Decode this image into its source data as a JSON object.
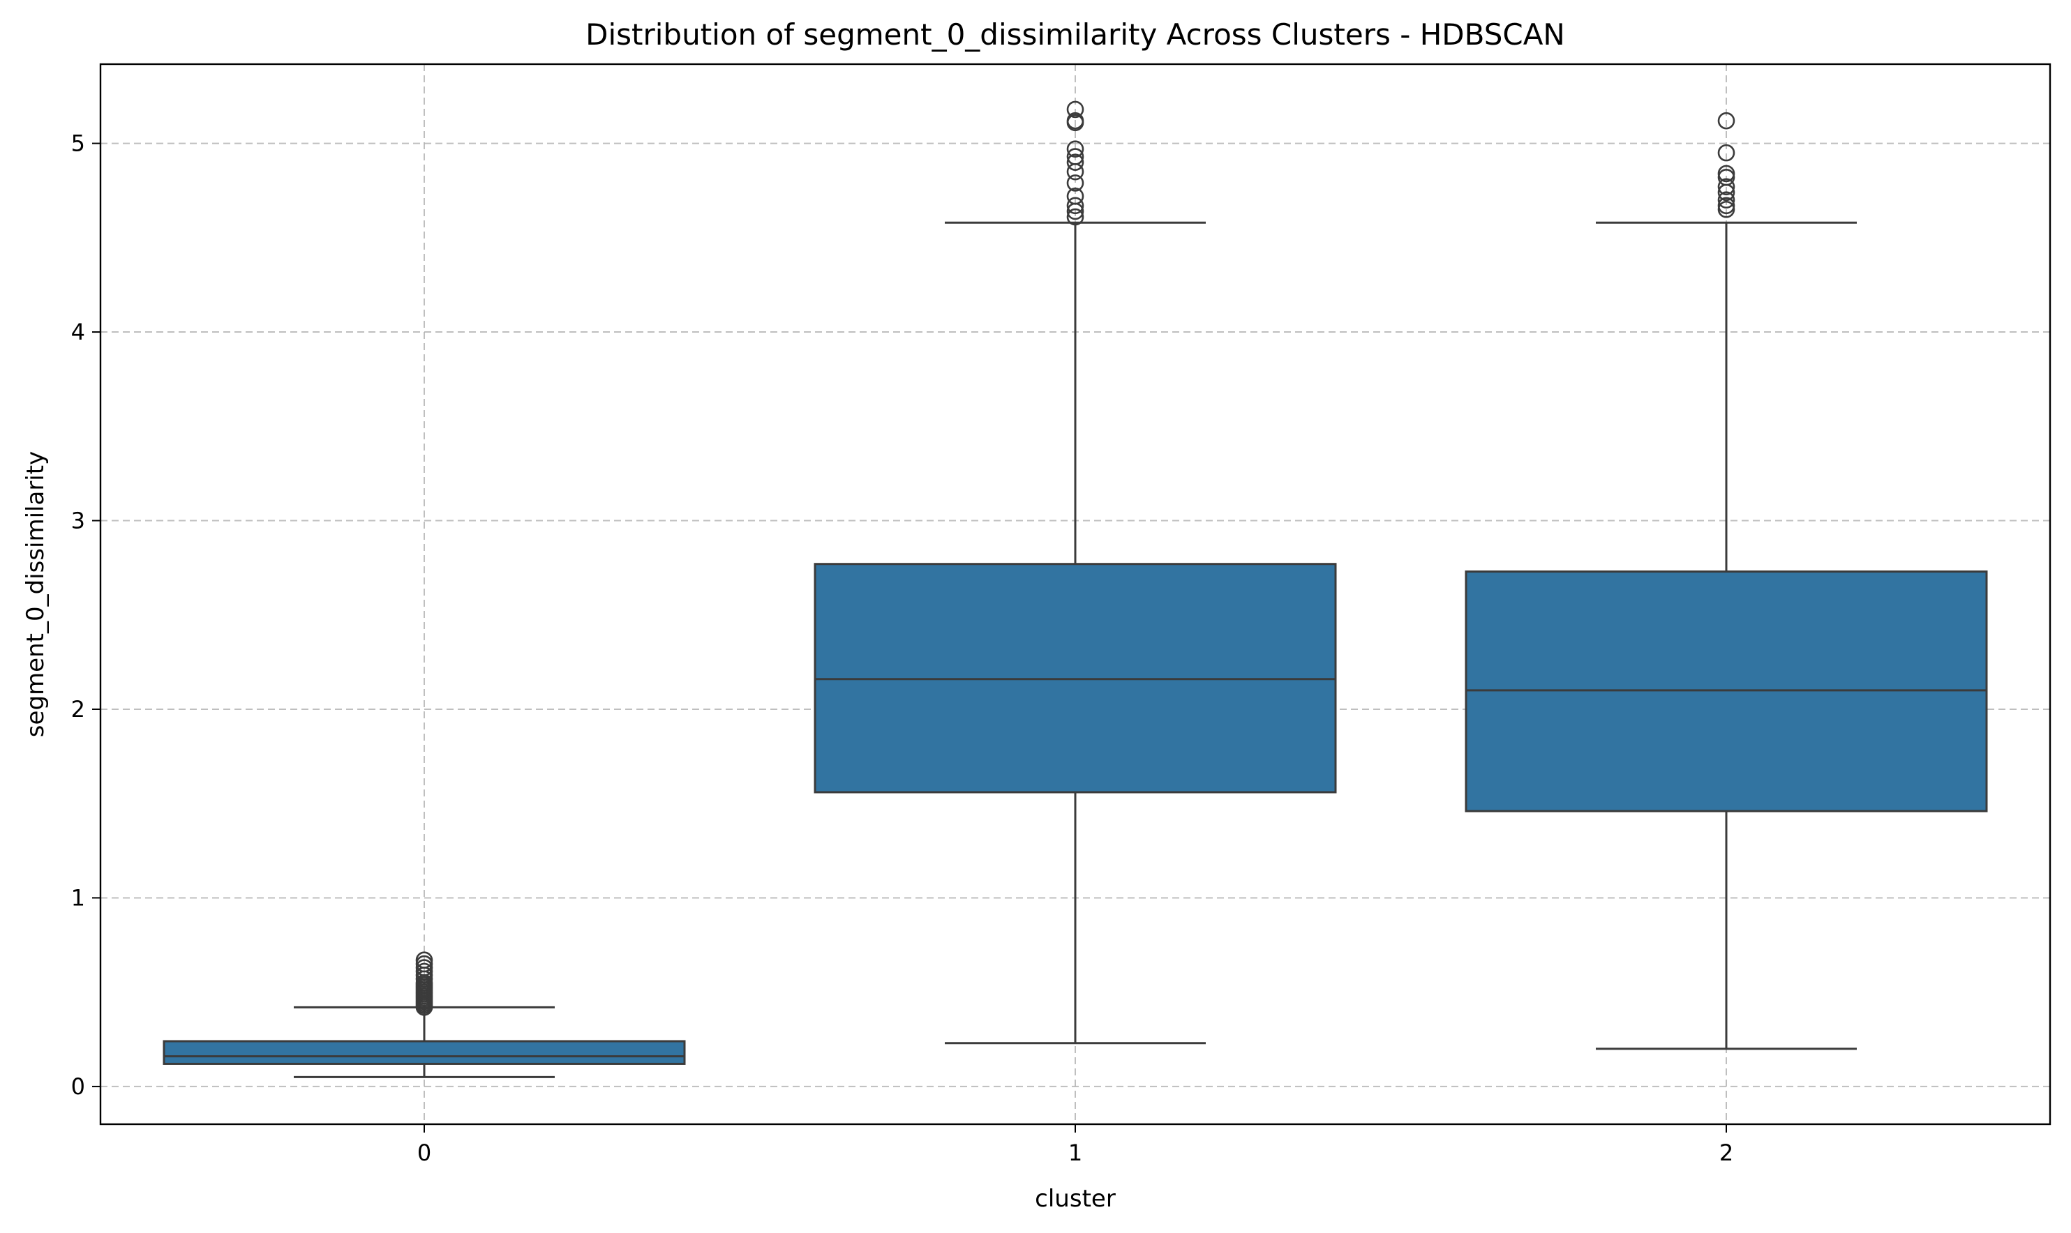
{
  "chart_data": {
    "type": "box",
    "title": "Distribution of segment_0_dissimilarity Across Clusters - HDBSCAN",
    "xlabel": "cluster",
    "ylabel": "segment_0_dissimilarity",
    "categories": [
      "0",
      "1",
      "2"
    ],
    "ylim": [
      -0.2,
      5.42
    ],
    "yticks": [
      0,
      1,
      2,
      3,
      4,
      5
    ],
    "grid": true,
    "box_color": "#3274a1",
    "line_color": "#3b3b3b",
    "boxes": [
      {
        "category": "0",
        "whisker_low": 0.05,
        "q1": 0.12,
        "median": 0.16,
        "q3": 0.24,
        "whisker_high": 0.42,
        "outliers": [
          0.42,
          0.43,
          0.44,
          0.45,
          0.46,
          0.47,
          0.48,
          0.49,
          0.5,
          0.51,
          0.52,
          0.53,
          0.54,
          0.55,
          0.57,
          0.59,
          0.61,
          0.63,
          0.65,
          0.67
        ]
      },
      {
        "category": "1",
        "whisker_low": 0.23,
        "q1": 1.56,
        "median": 2.16,
        "q3": 2.77,
        "whisker_high": 4.58,
        "outliers": [
          4.61,
          4.64,
          4.67,
          4.72,
          4.79,
          4.85,
          4.9,
          4.93,
          4.97,
          5.11,
          5.12,
          5.18
        ]
      },
      {
        "category": "2",
        "whisker_low": 0.2,
        "q1": 1.46,
        "median": 2.1,
        "q3": 2.73,
        "whisker_high": 4.58,
        "outliers": [
          4.65,
          4.67,
          4.7,
          4.74,
          4.77,
          4.82,
          4.84,
          4.95,
          5.12
        ]
      }
    ]
  }
}
